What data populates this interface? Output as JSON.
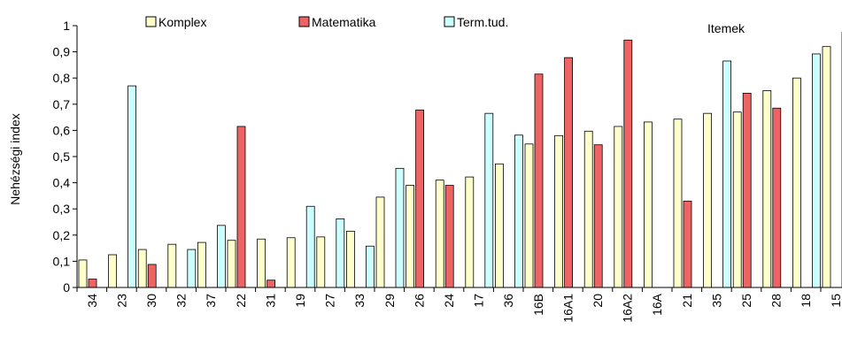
{
  "chart_data": {
    "type": "bar",
    "title": "",
    "xlabel": "",
    "ylabel": "Nehézségi index",
    "annotation": "Itemek",
    "ylim": [
      0,
      1
    ],
    "yticks": [
      "0",
      "0,1",
      "0,2",
      "0,3",
      "0,4",
      "0,5",
      "0,6",
      "0,7",
      "0,8",
      "0,9",
      "1"
    ],
    "grid": false,
    "legend_position": "top",
    "categories": [
      "34",
      "23",
      "30",
      "32",
      "37",
      "22",
      "31",
      "19",
      "27",
      "33",
      "29",
      "26",
      "24",
      "17",
      "36",
      "16B",
      "16A1",
      "20",
      "16A2",
      "16A",
      "21",
      "35",
      "25",
      "28",
      "18",
      "15"
    ],
    "series": [
      {
        "name": "Komplex",
        "color": "#ffffcc",
        "values": [
          0.105,
          0.125,
          0.145,
          0.165,
          0.172,
          0.18,
          0.185,
          0.19,
          0.193,
          0.215,
          0.345,
          0.39,
          0.41,
          0.422,
          0.472,
          0.548,
          0.58,
          0.597,
          0.615,
          0.632,
          0.643,
          0.665,
          0.67,
          0.752,
          0.8,
          0.92
        ]
      },
      {
        "name": "Matematika",
        "color": "#ee6464",
        "values": [
          0.032,
          null,
          0.088,
          null,
          null,
          0.615,
          0.028,
          null,
          null,
          null,
          null,
          0.678,
          0.39,
          null,
          null,
          0.815,
          0.878,
          0.545,
          0.945,
          null,
          0.33,
          null,
          0.742,
          0.685,
          null,
          null
        ]
      },
      {
        "name": "Term.tud.",
        "color": "#ccffff",
        "values": [
          null,
          0.77,
          null,
          0.145,
          0.237,
          null,
          null,
          0.31,
          0.262,
          0.158,
          0.455,
          null,
          null,
          0.665,
          0.582,
          null,
          null,
          null,
          null,
          null,
          null,
          0.865,
          null,
          null,
          0.892,
          0.975
        ]
      }
    ]
  }
}
